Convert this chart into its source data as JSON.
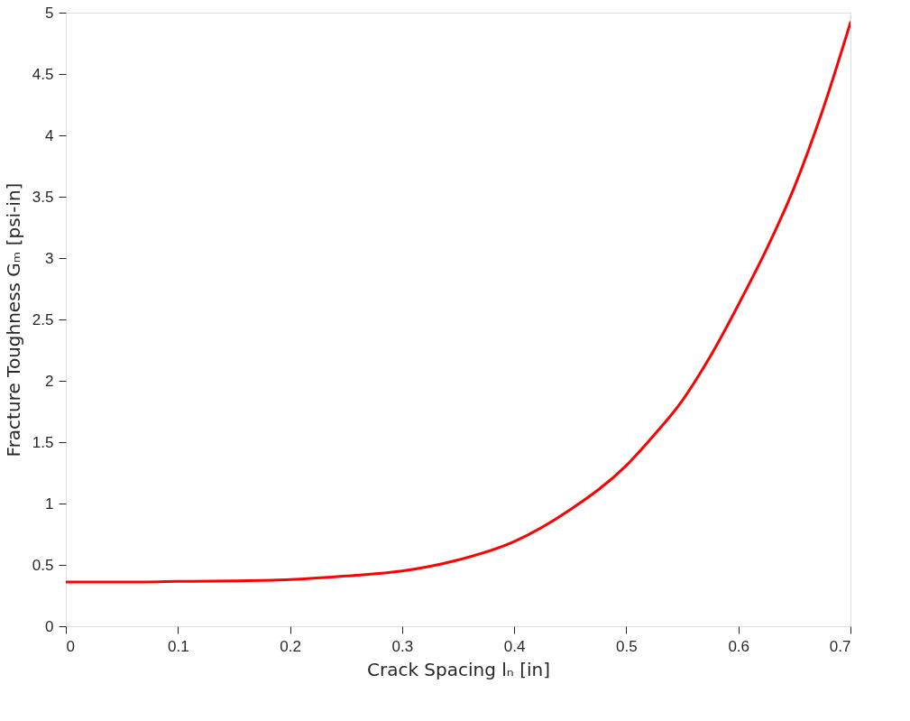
{
  "chart_data": {
    "type": "line",
    "xlabel": "Crack Spacing lₙ [in]",
    "ylabel": "Fracture Toughness Gₘ [psi-in]",
    "x": [
      0,
      0.05,
      0.1,
      0.15,
      0.2,
      0.25,
      0.3,
      0.35,
      0.4,
      0.45,
      0.5,
      0.525,
      0.55,
      0.575,
      0.6,
      0.625,
      0.65,
      0.675,
      0.7
    ],
    "series": [
      {
        "color": "#ff0000",
        "values": [
          0.36,
          0.36,
          0.365,
          0.37,
          0.38,
          0.41,
          0.45,
          0.54,
          0.69,
          0.95,
          1.31,
          1.56,
          1.84,
          2.2,
          2.62,
          3.07,
          3.58,
          4.2,
          4.92
        ]
      }
    ],
    "xlim": [
      0,
      0.7
    ],
    "xticks": [
      0,
      0.1,
      0.2,
      0.3,
      0.4,
      0.5,
      0.6,
      0.7
    ],
    "ylim": [
      0,
      5
    ],
    "yticks": [
      0,
      0.5,
      1,
      1.5,
      2,
      2.5,
      3,
      3.5,
      4,
      4.5,
      5
    ],
    "grid": false,
    "legend": false,
    "marker": "none",
    "line_style": "solid"
  }
}
